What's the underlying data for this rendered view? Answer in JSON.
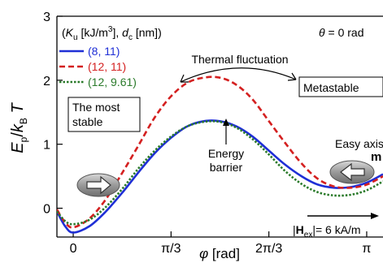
{
  "chart_data": {
    "type": "line",
    "xlabel": "φ [rad]",
    "ylabel": "E_p / k_B T",
    "xlim": [
      -0.1745,
      3.3161
    ],
    "ylim": [
      -0.45,
      3.0
    ],
    "x_ticks": [
      {
        "value": 0,
        "label": "0"
      },
      {
        "value": 1.0472,
        "label": "π/3"
      },
      {
        "value": 2.0944,
        "label": "2π/3"
      },
      {
        "value": 3.1416,
        "label": "π"
      }
    ],
    "y_ticks": [
      {
        "value": 0,
        "label": "0"
      },
      {
        "value": 1,
        "label": "1"
      },
      {
        "value": 2,
        "label": "2"
      },
      {
        "value": 3,
        "label": "3"
      }
    ],
    "legend_title": "(K_u [kJ/m³], d_c [nm])",
    "theta_label": "θ = 0 rad",
    "series": [
      {
        "name": "(8, 11)",
        "color": "#1f2fd6",
        "dash": "solid",
        "x": [
          -0.1745,
          -0.0873,
          0,
          0.1745,
          0.3491,
          0.5236,
          0.6981,
          0.8727,
          1.0472,
          1.2217,
          1.3963,
          1.5708,
          1.7453,
          1.9199,
          2.0944,
          2.2689,
          2.4435,
          2.618,
          2.7925,
          2.9671,
          3.1416,
          3.3161
        ],
        "y": [
          -0.05,
          -0.28,
          -0.38,
          -0.28,
          -0.05,
          0.24,
          0.56,
          0.86,
          1.1,
          1.28,
          1.36,
          1.36,
          1.28,
          1.12,
          0.9,
          0.68,
          0.5,
          0.37,
          0.32,
          0.33,
          0.4,
          0.53
        ]
      },
      {
        "name": "(12, 11)",
        "color": "#d42020",
        "dash": "dashed",
        "x": [
          -0.1745,
          -0.0873,
          0,
          0.1745,
          0.3491,
          0.5236,
          0.6981,
          0.8727,
          1.0472,
          1.2217,
          1.3963,
          1.5708,
          1.7453,
          1.9199,
          2.0944,
          2.2689,
          2.4435,
          2.618,
          2.7925,
          2.9671,
          3.1416,
          3.3161
        ],
        "y": [
          -0.02,
          -0.22,
          -0.3,
          -0.16,
          0.14,
          0.55,
          0.98,
          1.42,
          1.75,
          1.96,
          2.04,
          2.04,
          1.93,
          1.7,
          1.36,
          1.02,
          0.7,
          0.46,
          0.34,
          0.32,
          0.37,
          0.5
        ]
      },
      {
        "name": "(12, 9.61)",
        "color": "#2a7a2a",
        "dash": "dotted",
        "x": [
          -0.1745,
          -0.0873,
          0,
          0.1745,
          0.3491,
          0.5236,
          0.6981,
          0.8727,
          1.0472,
          1.2217,
          1.3963,
          1.5708,
          1.7453,
          1.9199,
          2.0944,
          2.2689,
          2.4435,
          2.618,
          2.7925,
          2.9671,
          3.1416,
          3.3161
        ],
        "y": [
          -0.05,
          -0.2,
          -0.25,
          -0.18,
          0.02,
          0.3,
          0.62,
          0.9,
          1.12,
          1.28,
          1.35,
          1.35,
          1.26,
          1.08,
          0.84,
          0.58,
          0.38,
          0.25,
          0.2,
          0.21,
          0.28,
          0.42
        ]
      }
    ],
    "annotations": {
      "thermal": "Thermal fluctuation",
      "metastable": "Metastable",
      "most_stable_1": "The most",
      "most_stable_2": "stable",
      "barrier_1": "Energy",
      "barrier_2": "barrier",
      "easy_axis": "Easy axis",
      "m": "m",
      "hex": "|H_ex|= 6 kA/m"
    }
  }
}
